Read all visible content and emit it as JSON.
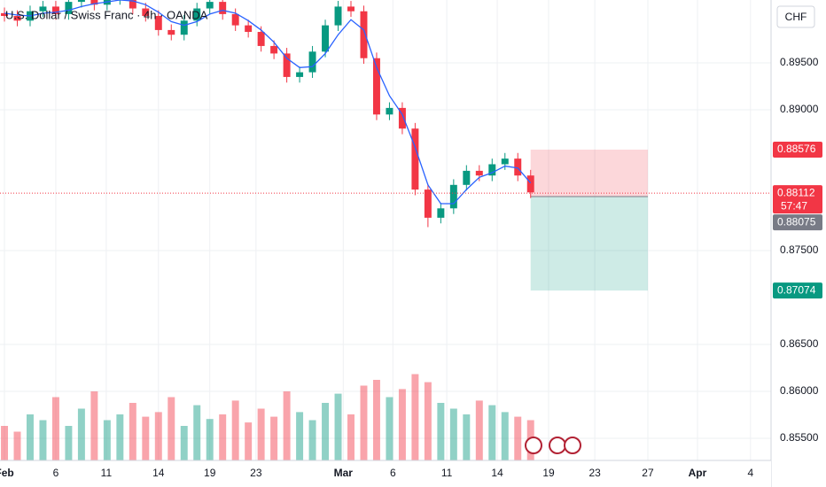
{
  "chart_data": {
    "type": "candlestick",
    "title": "U.S. Dollar / Swiss Franc · 4h · OANDA",
    "currency": "CHF",
    "x": [
      0,
      0.75,
      1.5,
      2.25,
      3,
      3.75,
      4.5,
      5.25,
      6,
      6.75,
      7.5,
      8.25,
      9,
      9.75,
      10.5,
      11.25,
      12,
      12.75,
      13.5,
      14.25,
      15,
      15.75,
      16.5,
      17.25,
      18,
      18.75,
      19.5,
      20.25,
      21,
      21.75,
      22.5,
      23.25,
      24,
      24.75,
      25.5,
      26.25,
      27,
      27.75,
      28.5,
      29.25,
      30,
      30.75
    ],
    "open": [
      0.9003,
      0.9,
      0.8995,
      0.9005,
      0.901,
      0.9002,
      0.9015,
      0.902,
      0.9012,
      0.9018,
      0.9022,
      0.9008,
      0.9,
      0.8985,
      0.898,
      0.8995,
      0.9008,
      0.9015,
      0.9002,
      0.899,
      0.8983,
      0.8968,
      0.896,
      0.8935,
      0.894,
      0.8962,
      0.899,
      0.901,
      0.9005,
      0.8955,
      0.8895,
      0.8902,
      0.888,
      0.8815,
      0.8785,
      0.8795,
      0.882,
      0.8835,
      0.883,
      0.8842,
      0.8848,
      0.883
    ],
    "high": [
      0.9009,
      0.9006,
      0.9011,
      0.9016,
      0.9016,
      0.9021,
      0.9026,
      0.9026,
      0.9024,
      0.9028,
      0.9028,
      0.9014,
      0.9006,
      0.8991,
      0.9001,
      0.9014,
      0.9021,
      0.9021,
      0.9008,
      0.8996,
      0.8989,
      0.8974,
      0.8966,
      0.8946,
      0.8968,
      0.8996,
      0.9016,
      0.9016,
      0.9011,
      0.8961,
      0.8908,
      0.8908,
      0.8886,
      0.8821,
      0.8801,
      0.8826,
      0.8841,
      0.8841,
      0.8848,
      0.8854,
      0.8854,
      0.8836
    ],
    "low": [
      0.8994,
      0.8989,
      0.8989,
      0.8999,
      0.8996,
      0.8996,
      0.9009,
      0.9006,
      0.9006,
      0.9012,
      0.9002,
      0.8994,
      0.8979,
      0.8974,
      0.8974,
      0.8989,
      0.9002,
      0.8996,
      0.8984,
      0.8977,
      0.8962,
      0.8954,
      0.8929,
      0.8929,
      0.8934,
      0.8956,
      0.8984,
      0.8999,
      0.8949,
      0.8889,
      0.8889,
      0.8874,
      0.8809,
      0.8775,
      0.8779,
      0.8789,
      0.8814,
      0.8824,
      0.8824,
      0.8836,
      0.8824,
      0.8806
    ],
    "close": [
      0.9,
      0.8995,
      0.9005,
      0.901,
      0.9002,
      0.9015,
      0.902,
      0.9012,
      0.9018,
      0.9022,
      0.9008,
      0.9,
      0.8985,
      0.898,
      0.8995,
      0.9008,
      0.9015,
      0.9002,
      0.899,
      0.8983,
      0.8968,
      0.896,
      0.8935,
      0.894,
      0.8962,
      0.899,
      0.901,
      0.9005,
      0.8955,
      0.8895,
      0.8902,
      0.888,
      0.8815,
      0.8785,
      0.8795,
      0.882,
      0.8835,
      0.883,
      0.8842,
      0.8848,
      0.883,
      0.8812
    ],
    "moving_average": {
      "color": "#2962ff",
      "values": [
        0.9003,
        0.9001,
        0.9,
        0.9003,
        0.9004,
        0.9006,
        0.901,
        0.9013,
        0.9015,
        0.9017,
        0.9016,
        0.9012,
        0.9004,
        0.8994,
        0.899,
        0.8994,
        0.9002,
        0.9006,
        0.9003,
        0.8995,
        0.8985,
        0.8972,
        0.8955,
        0.8945,
        0.8946,
        0.896,
        0.898,
        0.8996,
        0.8985,
        0.8945,
        0.8915,
        0.8895,
        0.886,
        0.882,
        0.88,
        0.88,
        0.8815,
        0.8828,
        0.8833,
        0.884,
        0.8838,
        0.8822
      ]
    },
    "volume": [
      30,
      25,
      40,
      35,
      55,
      30,
      45,
      60,
      35,
      40,
      50,
      38,
      42,
      55,
      30,
      48,
      36,
      40,
      52,
      33,
      45,
      38,
      60,
      42,
      35,
      50,
      58,
      40,
      65,
      70,
      55,
      62,
      75,
      68,
      50,
      45,
      40,
      52,
      48,
      42,
      38,
      35
    ],
    "volume_ylim": [
      0,
      400
    ],
    "up_color": "#089981",
    "down_color": "#f23645",
    "xlim": [
      -0.26,
      44.8
    ],
    "ylim": [
      0.85264,
      0.9017
    ],
    "xticks": [
      {
        "value": 0,
        "label": "Feb"
      },
      {
        "value": 3,
        "label": "6"
      },
      {
        "value": 5.95,
        "label": "11"
      },
      {
        "value": 9,
        "label": "14"
      },
      {
        "value": 12,
        "label": "19"
      },
      {
        "value": 14.7,
        "label": "23"
      },
      {
        "value": 19.8,
        "label": "Mar"
      },
      {
        "value": 22.7,
        "label": "6"
      },
      {
        "value": 25.85,
        "label": "11"
      },
      {
        "value": 28.8,
        "label": "14"
      },
      {
        "value": 31.8,
        "label": "19"
      },
      {
        "value": 34.5,
        "label": "23"
      },
      {
        "value": 37.6,
        "label": "27"
      },
      {
        "value": 40.5,
        "label": "Apr"
      },
      {
        "value": 43.6,
        "label": "4"
      }
    ],
    "yticks": [
      {
        "value": 0.895,
        "label": "0.89500"
      },
      {
        "value": 0.89,
        "label": "0.89000"
      },
      {
        "value": 0.875,
        "label": "0.87500"
      },
      {
        "value": 0.865,
        "label": "0.86500"
      },
      {
        "value": 0.86,
        "label": "0.86000"
      },
      {
        "value": 0.855,
        "label": "0.85500"
      }
    ],
    "grid": true,
    "current_price": 0.88112,
    "countdown": "57:47",
    "position": {
      "x": [
        30.75,
        37.6
      ],
      "stop": 0.88576,
      "entry": 0.88075,
      "target": 0.87074
    }
  }
}
